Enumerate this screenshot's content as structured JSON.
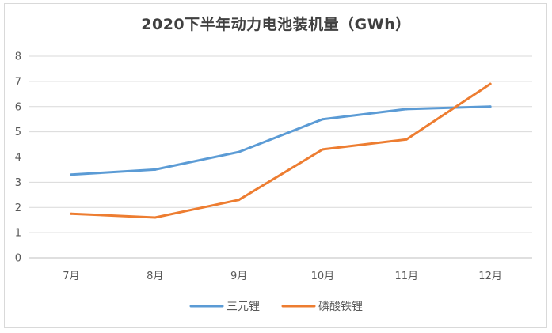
{
  "chart_data": {
    "type": "line",
    "title": "2020下半年动力电池装机量（GWh）",
    "categories": [
      "7月",
      "8月",
      "9月",
      "10月",
      "11月",
      "12月"
    ],
    "series": [
      {
        "name": "三元锂",
        "color": "#5b9bd5",
        "values": [
          3.3,
          3.5,
          4.2,
          5.5,
          5.9,
          6.0
        ]
      },
      {
        "name": "磷酸铁锂",
        "color": "#ed7d31",
        "values": [
          1.75,
          1.6,
          2.3,
          4.3,
          4.7,
          6.9
        ]
      }
    ],
    "ylim": [
      0,
      8
    ],
    "yticks": [
      0,
      1,
      2,
      3,
      4,
      5,
      6,
      7,
      8
    ],
    "grid": true,
    "legend": "bottom"
  }
}
